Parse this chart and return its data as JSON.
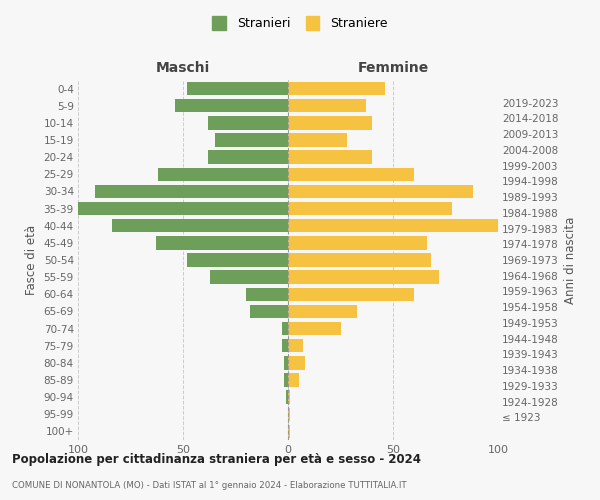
{
  "age_groups": [
    "100+",
    "95-99",
    "90-94",
    "85-89",
    "80-84",
    "75-79",
    "70-74",
    "65-69",
    "60-64",
    "55-59",
    "50-54",
    "45-49",
    "40-44",
    "35-39",
    "30-34",
    "25-29",
    "20-24",
    "15-19",
    "10-14",
    "5-9",
    "0-4"
  ],
  "birth_years": [
    "≤ 1923",
    "1924-1928",
    "1929-1933",
    "1934-1938",
    "1939-1943",
    "1944-1948",
    "1949-1953",
    "1954-1958",
    "1959-1963",
    "1964-1968",
    "1969-1973",
    "1974-1978",
    "1979-1983",
    "1984-1988",
    "1989-1993",
    "1994-1998",
    "1999-2003",
    "2004-2008",
    "2009-2013",
    "2014-2018",
    "2019-2023"
  ],
  "maschi": [
    0,
    0,
    1,
    2,
    2,
    3,
    3,
    18,
    20,
    37,
    48,
    63,
    84,
    100,
    92,
    62,
    38,
    35,
    38,
    54,
    48
  ],
  "femmine": [
    1,
    1,
    1,
    5,
    8,
    7,
    25,
    33,
    60,
    72,
    68,
    66,
    100,
    78,
    88,
    60,
    40,
    28,
    40,
    37,
    46
  ],
  "male_color": "#6d9e5a",
  "female_color": "#f5c242",
  "bg_color": "#f7f7f7",
  "grid_color": "#cccccc",
  "title": "Popolazione per cittadinanza straniera per età e sesso - 2024",
  "subtitle": "COMUNE DI NONANTOLA (MO) - Dati ISTAT al 1° gennaio 2024 - Elaborazione TUTTITALIA.IT",
  "xlabel_left": "Maschi",
  "xlabel_right": "Femmine",
  "ylabel_left": "Fasce di età",
  "ylabel_right": "Anni di nascita",
  "legend_male": "Stranieri",
  "legend_female": "Straniere",
  "xmax": 100
}
